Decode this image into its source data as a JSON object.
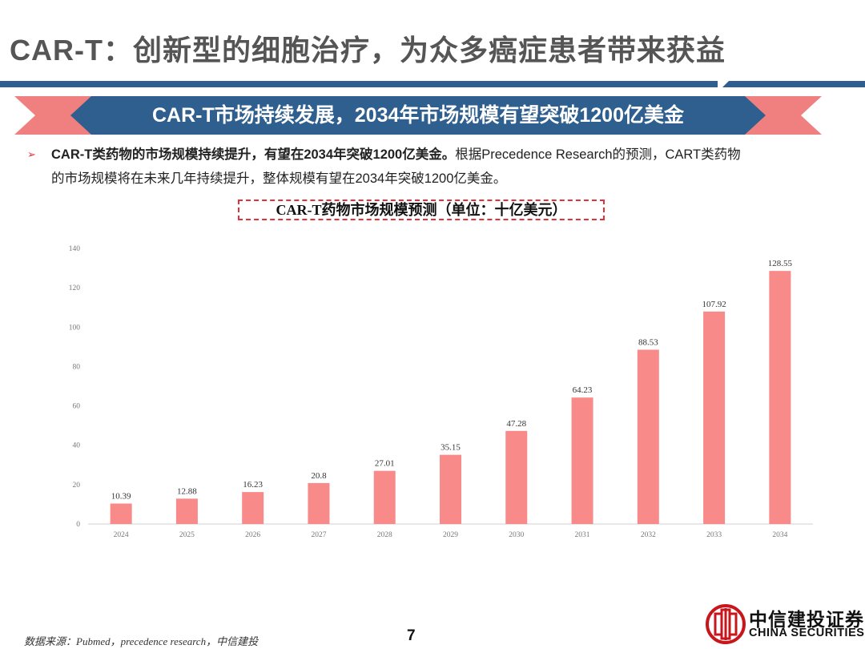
{
  "page": {
    "title": "CAR-T：创新型的细胞治疗，为众多癌症患者带来获益",
    "banner": "CAR-T市场持续发展，2034年市场规模有望突破1200亿美金",
    "bullet_bold": "CAR-T类药物的市场规模持续提升，有望在2034年突破1200亿美金。",
    "bullet_rest": "根据Precedence Research的预测，CART类药物",
    "bullet_line2": "的市场规模将在未来几年持续提升，整体规模有望在2034年突破1200亿美金。",
    "bullet_marker": "➢",
    "chart_title": "CAR-T药物市场规模预测（单位：十亿美元）",
    "source": "数据来源：Pubmed，precedence research，中信建投",
    "page_number": "7"
  },
  "logo": {
    "name": "中信建投证券",
    "english": "CHINA SECURITIES",
    "color": "#c8161d"
  },
  "colors": {
    "title": "#555555",
    "rule": "#2e5f8e",
    "banner_fill": "#2e5f8e",
    "banner_tips": "#f08080",
    "bar": "#f88a8a",
    "accent": "#e3303a"
  },
  "chart_data": {
    "type": "bar",
    "title": "CAR-T药物市场规模预测（单位：十亿美元）",
    "categories": [
      "2024",
      "2025",
      "2026",
      "2027",
      "2028",
      "2029",
      "2030",
      "2031",
      "2032",
      "2033",
      "2034"
    ],
    "values": [
      10.39,
      12.88,
      16.23,
      20.8,
      27.01,
      35.15,
      47.28,
      64.23,
      88.53,
      107.92,
      128.55
    ],
    "value_labels": [
      "10.39",
      "12.88",
      "16.23",
      "20.8",
      "27.01",
      "35.15",
      "47.28",
      "64.23",
      "88.53",
      "107.92",
      "128.55"
    ],
    "ylim": [
      0,
      140
    ],
    "yticks": [
      0,
      20,
      40,
      60,
      80,
      100,
      120,
      140
    ],
    "grid": false,
    "legend": "none",
    "xlabel": "",
    "ylabel": ""
  }
}
